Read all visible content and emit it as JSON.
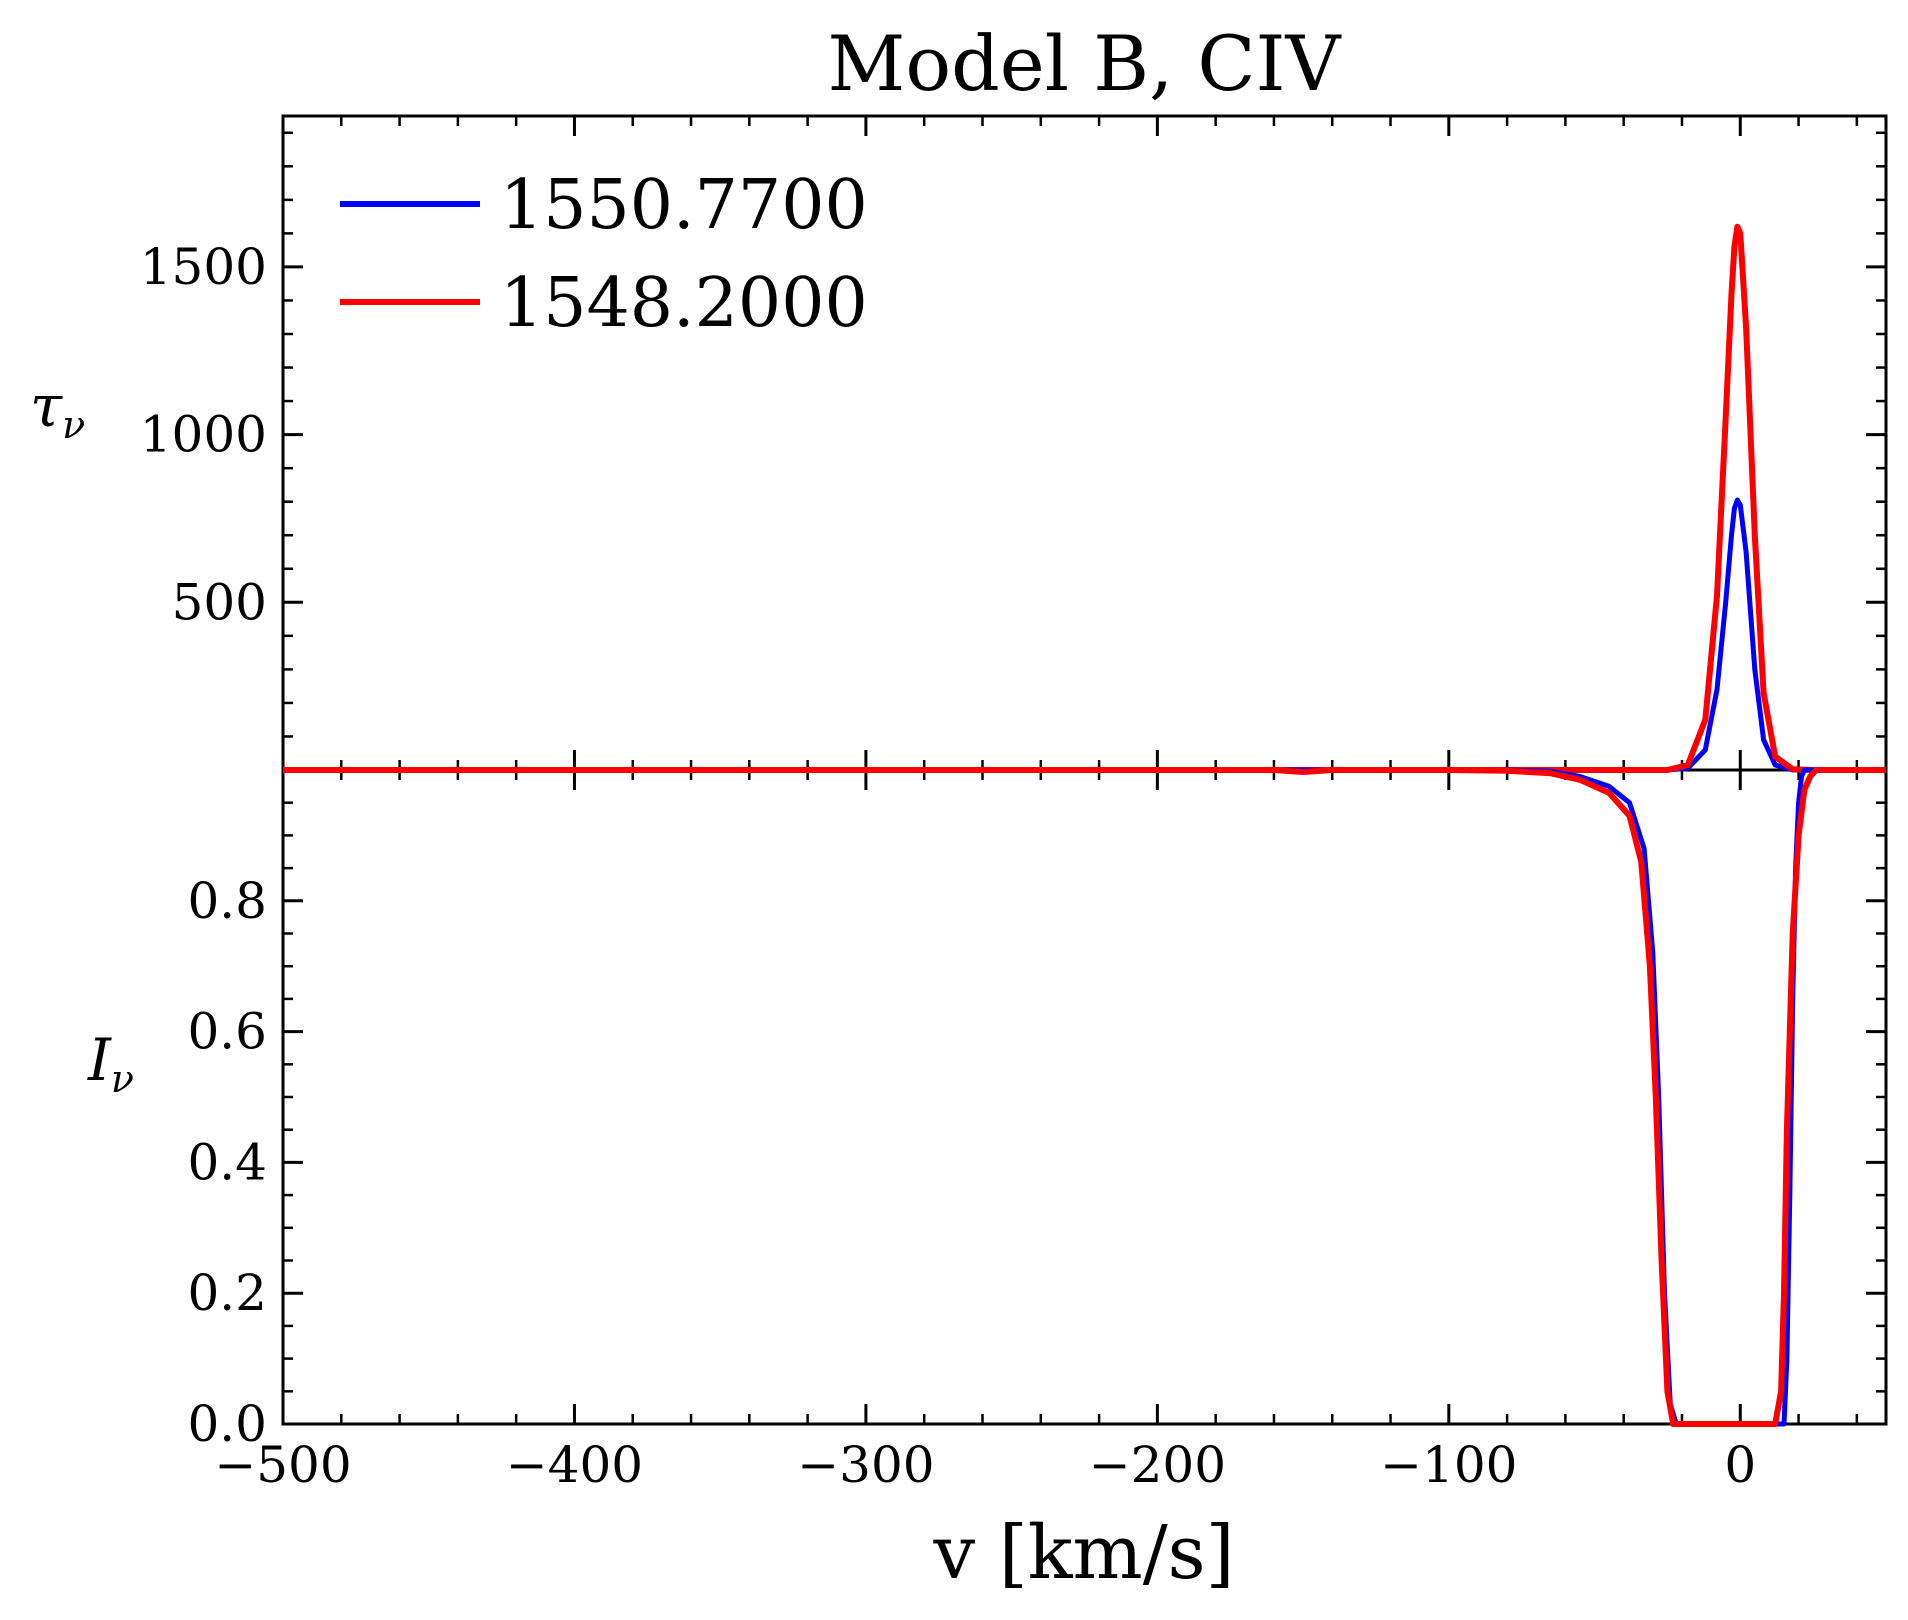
{
  "chart_data": [
    {
      "type": "line",
      "panel": "top",
      "title": "Model B, CIV",
      "ylabel": "τ",
      "ylabel_sub": "ν",
      "xlim": [
        -500,
        50
      ],
      "ylim": [
        0,
        1950
      ],
      "xticks": [
        -500,
        -400,
        -300,
        -200,
        -100,
        0
      ],
      "yticks": [
        500,
        1000,
        1500
      ],
      "ytick_labels": [
        "500",
        "1000",
        "1500"
      ],
      "legend_position": "top-left",
      "series": [
        {
          "name": "1550.7700",
          "color": "#0000ff",
          "x": [
            -500,
            -100,
            -40,
            -25,
            -18,
            -12,
            -8,
            -5,
            -3,
            -2,
            -1,
            0,
            2,
            5,
            8,
            12,
            18,
            25,
            50
          ],
          "y": [
            0,
            0,
            0,
            0,
            5,
            60,
            240,
            500,
            700,
            780,
            805,
            790,
            650,
            300,
            90,
            15,
            0,
            0,
            0
          ]
        },
        {
          "name": "1548.2000",
          "color": "#ff0000",
          "x": [
            -500,
            -100,
            -40,
            -25,
            -18,
            -12,
            -8,
            -5,
            -3,
            -2,
            -1,
            0,
            2,
            5,
            8,
            12,
            18,
            25,
            50
          ],
          "y": [
            0,
            0,
            0,
            0,
            15,
            150,
            520,
            1050,
            1420,
            1560,
            1620,
            1600,
            1320,
            700,
            230,
            40,
            2,
            0,
            0
          ]
        }
      ]
    },
    {
      "type": "line",
      "panel": "bottom",
      "xlabel": "v [km/s]",
      "ylabel": "I",
      "ylabel_sub": "ν",
      "xlim": [
        -500,
        50
      ],
      "ylim": [
        0,
        1
      ],
      "xticks": [
        -500,
        -400,
        -300,
        -200,
        -100,
        0
      ],
      "xtick_labels": [
        "−500",
        "−400",
        "−300",
        "−200",
        "−100",
        "0"
      ],
      "yticks": [
        0.0,
        0.2,
        0.4,
        0.6,
        0.8
      ],
      "ytick_labels": [
        "0.0",
        "0.2",
        "0.4",
        "0.6",
        "0.8"
      ],
      "series": [
        {
          "name": "1550.7700",
          "color": "#0000ff",
          "x": [
            -500,
            -80,
            -65,
            -55,
            -45,
            -38,
            -33,
            -30,
            -28,
            -26,
            -24,
            -22,
            15,
            16,
            17,
            18,
            19,
            20,
            21,
            22,
            50
          ],
          "y": [
            1,
            1,
            0.998,
            0.99,
            0.975,
            0.95,
            0.88,
            0.72,
            0.5,
            0.2,
            0.03,
            0,
            0,
            0.1,
            0.35,
            0.65,
            0.85,
            0.95,
            0.99,
            1,
            1
          ]
        },
        {
          "name": "1548.2000",
          "color": "#ff0000",
          "x": [
            -500,
            -160,
            -150,
            -140,
            -100,
            -80,
            -65,
            -55,
            -45,
            -38,
            -34,
            -31,
            -29,
            -27,
            -25,
            -23,
            12,
            14,
            15,
            16,
            18,
            20,
            22,
            24,
            26,
            50
          ],
          "y": [
            1,
            1,
            0.997,
            1,
            1,
            0.999,
            0.995,
            0.985,
            0.965,
            0.93,
            0.86,
            0.7,
            0.5,
            0.25,
            0.05,
            0,
            0,
            0.05,
            0.2,
            0.45,
            0.75,
            0.9,
            0.97,
            0.99,
            1,
            1
          ]
        }
      ]
    }
  ]
}
